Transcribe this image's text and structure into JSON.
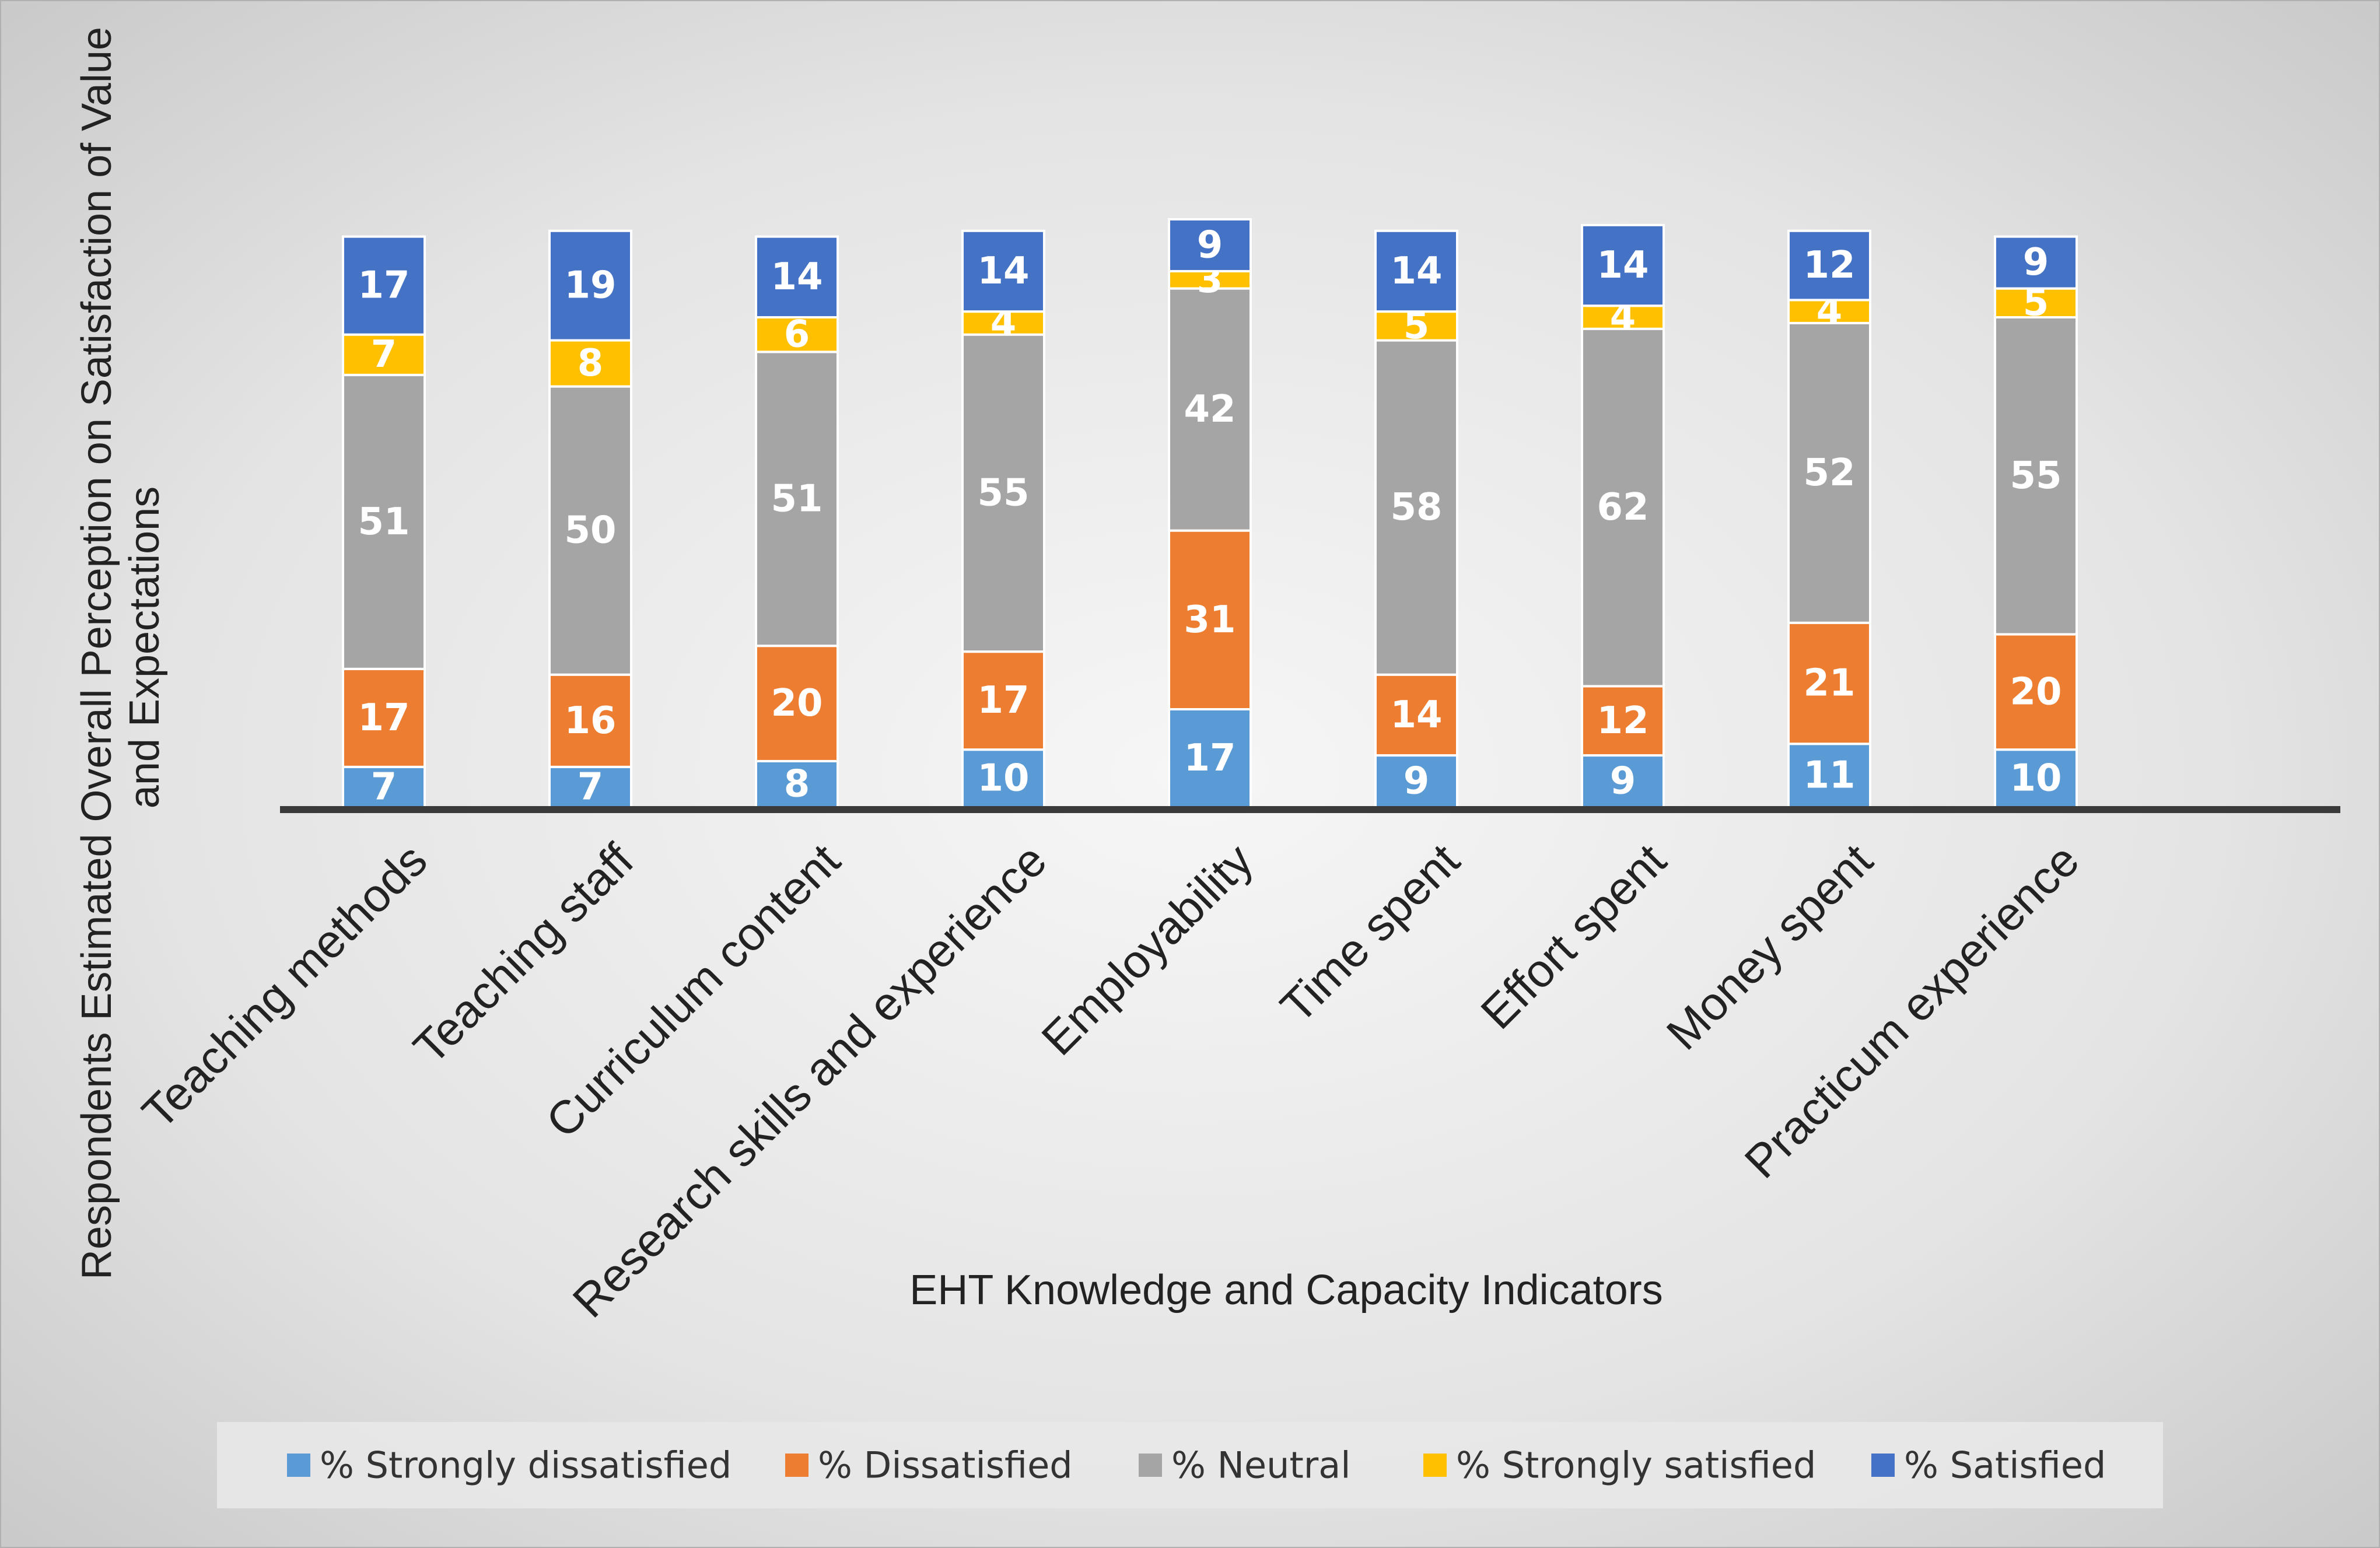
{
  "chart_data": {
    "type": "bar",
    "stacked": true,
    "title": "",
    "xlabel": "EHT Knowledge  and Capacity Indicators",
    "ylabel_lines": [
      "Respondents Estimated Overall Perception on Satisfaction of Value",
      "and Expectations"
    ],
    "ylim": [
      0,
      102
    ],
    "legend_position": "bottom",
    "categories": [
      "Teaching methods",
      "Teaching staff",
      "Curriculum content",
      "Research skills and experience",
      "Employability",
      "Time spent",
      "Effort spent",
      "Money spent",
      "Practicum experience"
    ],
    "series": [
      {
        "name": "% Strongly dissatisfied",
        "color": "#5b9bd5",
        "values": [
          7,
          7,
          8,
          10,
          17,
          9,
          9,
          11,
          10
        ]
      },
      {
        "name": "% Dissatisfied",
        "color": "#ed7d31",
        "values": [
          17,
          16,
          20,
          17,
          31,
          14,
          12,
          21,
          20
        ]
      },
      {
        "name": "% Neutral",
        "color": "#a5a5a5",
        "values": [
          51,
          50,
          51,
          55,
          42,
          58,
          62,
          52,
          55
        ]
      },
      {
        "name": "% Strongly satisfied",
        "color": "#ffc000",
        "values": [
          7,
          8,
          6,
          4,
          3,
          5,
          4,
          4,
          5
        ]
      },
      {
        "name": "% Satisfied",
        "color": "#4472c4",
        "values": [
          17,
          19,
          14,
          14,
          9,
          14,
          14,
          12,
          9
        ]
      }
    ]
  }
}
